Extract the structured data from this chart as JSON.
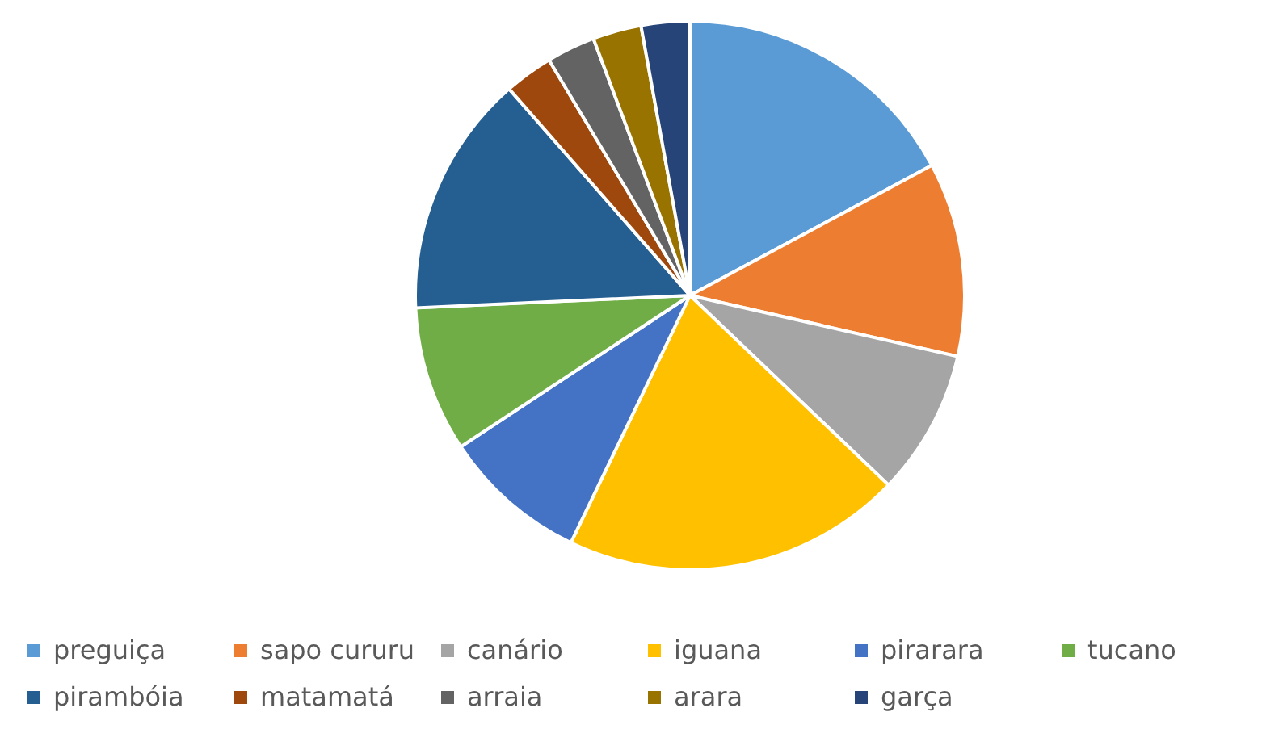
{
  "chart_data": {
    "type": "pie",
    "categories": [
      "preguiça",
      "sapo cururu",
      "canário",
      "iguana",
      "pirarara",
      "tucano",
      "pirambóia",
      "matamatá",
      "arraia",
      "arara",
      "garça"
    ],
    "values": [
      17.14,
      11.43,
      8.57,
      20,
      8.57,
      8.57,
      14.28,
      2.86,
      2.86,
      2.86,
      2.86
    ],
    "colors": [
      "#5b9bd5",
      "#ed7d31",
      "#a5a5a5",
      "#ffc000",
      "#4472c4",
      "#70ad47",
      "#255e91",
      "#9e480e",
      "#636363",
      "#997300",
      "#264478"
    ],
    "legend": "bottom"
  }
}
